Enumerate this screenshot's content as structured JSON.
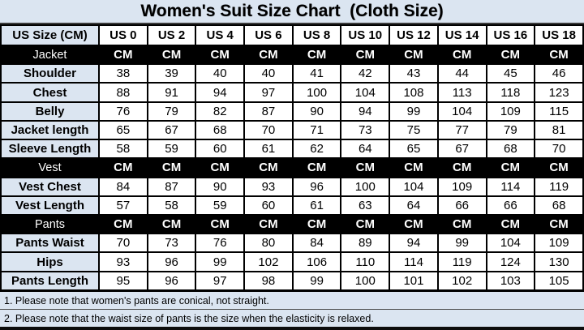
{
  "colors": {
    "light_blue_bg": "#dbe5f1",
    "section_row_bg": "#000000",
    "section_row_text": "#ffffff",
    "cell_bg": "#ffffff",
    "border": "#000000",
    "text": "#000000"
  },
  "chart_data": {
    "type": "table",
    "title": "Women's Suit Size Chart  (Cloth Size)",
    "columns": [
      "US Size (CM)",
      "US 0",
      "US 2",
      "US 4",
      "US 6",
      "US 8",
      "US 10",
      "US 12",
      "US 14",
      "US 16",
      "US 18"
    ],
    "rows": [
      {
        "label": "Jacket",
        "type": "section",
        "values": [
          "CM",
          "CM",
          "CM",
          "CM",
          "CM",
          "CM",
          "CM",
          "CM",
          "CM",
          "CM"
        ]
      },
      {
        "label": "Shoulder",
        "type": "data",
        "values": [
          38,
          39,
          40,
          40,
          41,
          42,
          43,
          44,
          45,
          46
        ]
      },
      {
        "label": "Chest",
        "type": "data",
        "values": [
          88,
          91,
          94,
          97,
          100,
          104,
          108,
          113,
          118,
          123
        ]
      },
      {
        "label": "Belly",
        "type": "data",
        "values": [
          76,
          79,
          82,
          87,
          90,
          94,
          99,
          104,
          109,
          115
        ]
      },
      {
        "label": "Jacket length",
        "type": "data",
        "values": [
          65,
          67,
          68,
          70,
          71,
          73,
          75,
          77,
          79,
          81
        ]
      },
      {
        "label": "Sleeve Length",
        "type": "data",
        "values": [
          58,
          59,
          60,
          61,
          62,
          64,
          65,
          67,
          68,
          70
        ]
      },
      {
        "label": "Vest",
        "type": "section",
        "values": [
          "CM",
          "CM",
          "CM",
          "CM",
          "CM",
          "CM",
          "CM",
          "CM",
          "CM",
          "CM"
        ]
      },
      {
        "label": "Vest Chest",
        "type": "data",
        "values": [
          84,
          87,
          90,
          93,
          96,
          100,
          104,
          109,
          114,
          119
        ]
      },
      {
        "label": "Vest Length",
        "type": "data",
        "values": [
          57,
          58,
          59,
          60,
          61,
          63,
          64,
          66,
          66,
          68
        ]
      },
      {
        "label": "Pants",
        "type": "section",
        "values": [
          "CM",
          "CM",
          "CM",
          "CM",
          "CM",
          "CM",
          "CM",
          "CM",
          "CM",
          "CM"
        ]
      },
      {
        "label": "Pants Waist",
        "type": "data",
        "values": [
          70,
          73,
          76,
          80,
          84,
          89,
          94,
          99,
          104,
          109
        ]
      },
      {
        "label": "Hips",
        "type": "data",
        "values": [
          93,
          96,
          99,
          102,
          106,
          110,
          114,
          119,
          124,
          130
        ]
      },
      {
        "label": "Pants Length",
        "type": "data",
        "values": [
          95,
          96,
          97,
          98,
          99,
          100,
          101,
          102,
          103,
          105
        ]
      }
    ],
    "notes": [
      "1. Please note that women's pants are conical, not straight.",
      "2. Please note that the waist size of pants is the size when the elasticity is relaxed."
    ]
  }
}
